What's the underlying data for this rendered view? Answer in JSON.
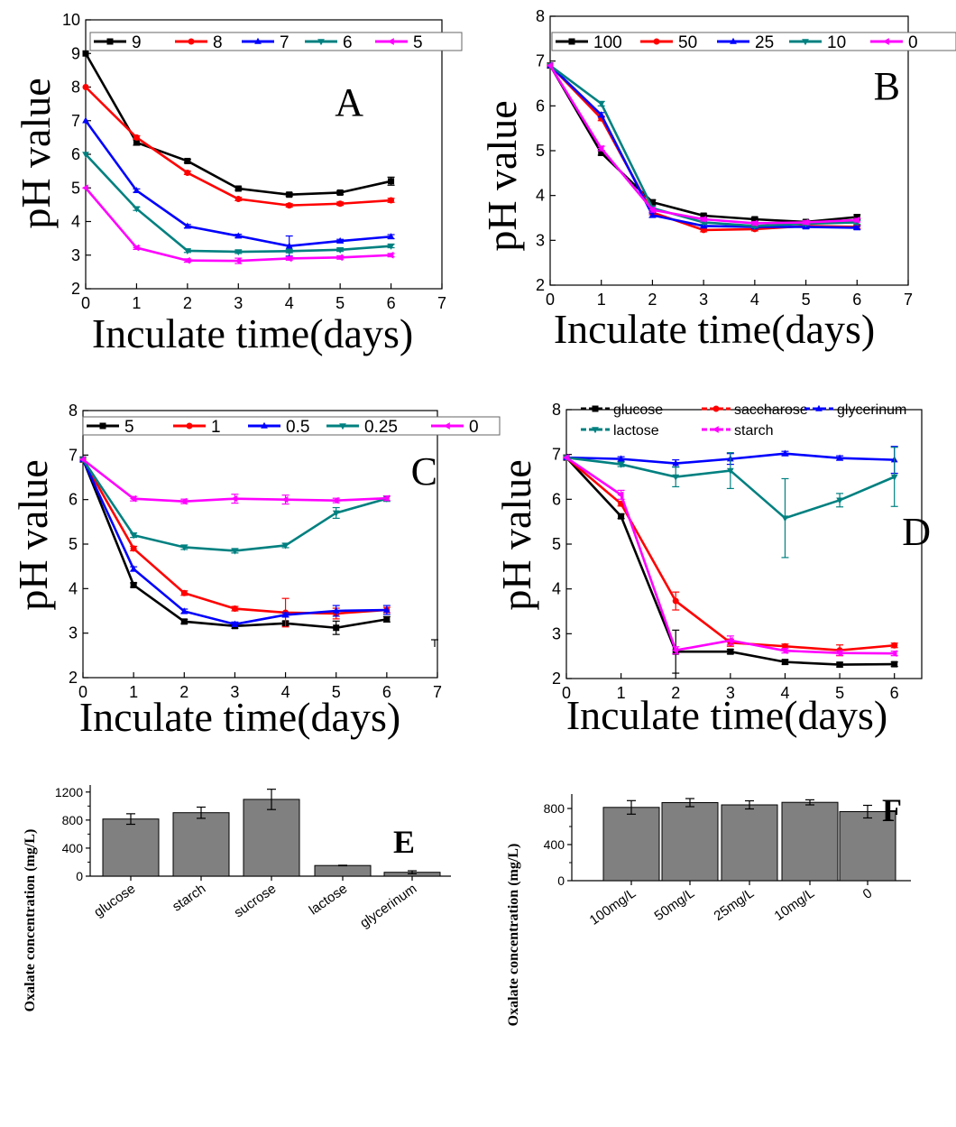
{
  "chart_data": [
    {
      "id": "A",
      "type": "line",
      "panel_label": "A",
      "xlabel": "Inculate time(days)",
      "ylabel": "pH value",
      "xlim": [
        0,
        7
      ],
      "ylim": [
        2,
        10
      ],
      "x_ticks": [
        0,
        1,
        2,
        3,
        4,
        5,
        6,
        7
      ],
      "y_ticks": [
        2,
        3,
        4,
        5,
        6,
        7,
        8,
        9,
        10
      ],
      "x": [
        0,
        1,
        2,
        3,
        4,
        5,
        6
      ],
      "legend": "top, one row",
      "series": [
        {
          "name": "9",
          "color": "#000000",
          "marker": "square",
          "values": [
            9.0,
            6.35,
            5.8,
            4.98,
            4.8,
            4.86,
            5.2
          ],
          "errors": [
            0,
            0.08,
            0.05,
            0.05,
            0.05,
            0.05,
            0.12
          ]
        },
        {
          "name": "8",
          "color": "#ff0000",
          "marker": "circle",
          "values": [
            8.0,
            6.5,
            5.45,
            4.67,
            4.48,
            4.53,
            4.63
          ],
          "errors": [
            0,
            0.05,
            0.05,
            0.05,
            0.05,
            0.05,
            0.06
          ]
        },
        {
          "name": "7",
          "color": "#0000ff",
          "marker": "triangle-up",
          "values": [
            7.0,
            4.92,
            3.86,
            3.57,
            3.27,
            3.42,
            3.55
          ],
          "errors": [
            0,
            0.05,
            0.05,
            0.05,
            0.3,
            0.05,
            0.06
          ]
        },
        {
          "name": "6",
          "color": "#008080",
          "marker": "triangle-down",
          "values": [
            6.0,
            4.38,
            3.13,
            3.1,
            3.12,
            3.16,
            3.27
          ],
          "errors": [
            0,
            0.05,
            0.05,
            0.05,
            0.05,
            0.05,
            0.05
          ]
        },
        {
          "name": "5",
          "color": "#ff00ff",
          "marker": "triangle-left",
          "values": [
            5.0,
            3.22,
            2.84,
            2.83,
            2.9,
            2.93,
            3.0
          ],
          "errors": [
            0,
            0.05,
            0.05,
            0.08,
            0.05,
            0.05,
            0.05
          ]
        }
      ]
    },
    {
      "id": "B",
      "type": "line",
      "panel_label": "B",
      "xlabel": "Inculate time(days)",
      "ylabel": "pH value",
      "xlim": [
        0,
        7
      ],
      "ylim": [
        2,
        8
      ],
      "x_ticks": [
        0,
        1,
        2,
        3,
        4,
        5,
        6,
        7
      ],
      "y_ticks": [
        2,
        3,
        4,
        5,
        6,
        7,
        8
      ],
      "x": [
        0,
        1,
        2,
        3,
        4,
        5,
        6
      ],
      "legend": "top, one row",
      "series": [
        {
          "name": "100",
          "color": "#000000",
          "marker": "square",
          "values": [
            6.9,
            4.95,
            3.85,
            3.55,
            3.47,
            3.41,
            3.52
          ],
          "errors": [
            0,
            0.05,
            0.05,
            0.04,
            0.04,
            0.04,
            0.05
          ]
        },
        {
          "name": "50",
          "color": "#ff0000",
          "marker": "circle",
          "values": [
            6.9,
            5.72,
            3.62,
            3.23,
            3.25,
            3.32,
            3.3
          ],
          "errors": [
            0,
            0.05,
            0.05,
            0.04,
            0.04,
            0.04,
            0.04
          ]
        },
        {
          "name": "25",
          "color": "#0000ff",
          "marker": "triangle-up",
          "values": [
            6.9,
            5.8,
            3.56,
            3.32,
            3.3,
            3.3,
            3.28
          ],
          "errors": [
            0,
            0.05,
            0.05,
            0.04,
            0.04,
            0.04,
            0.04
          ]
        },
        {
          "name": "10",
          "color": "#008080",
          "marker": "triangle-down",
          "values": [
            6.9,
            6.05,
            3.72,
            3.4,
            3.32,
            3.37,
            3.4
          ],
          "errors": [
            0,
            0.05,
            0.05,
            0.04,
            0.04,
            0.04,
            0.04
          ]
        },
        {
          "name": "0",
          "color": "#ff00ff",
          "marker": "triangle-left",
          "values": [
            6.9,
            5.05,
            3.68,
            3.47,
            3.38,
            3.4,
            3.45
          ],
          "errors": [
            0,
            0.05,
            0.05,
            0.04,
            0.04,
            0.04,
            0.04
          ]
        }
      ]
    },
    {
      "id": "C",
      "type": "line",
      "panel_label": "C",
      "xlabel": "Inculate time(days)",
      "ylabel": "pH value",
      "xlim": [
        0,
        7
      ],
      "ylim": [
        2,
        8
      ],
      "x_ticks": [
        0,
        1,
        2,
        3,
        4,
        5,
        6,
        7
      ],
      "y_ticks": [
        2,
        3,
        4,
        5,
        6,
        7,
        8
      ],
      "x": [
        0,
        1,
        2,
        3,
        4,
        5,
        6
      ],
      "legend": "top, one row",
      "series": [
        {
          "name": "5",
          "color": "#000000",
          "marker": "square",
          "values": [
            6.9,
            4.08,
            3.26,
            3.16,
            3.22,
            3.12,
            3.31
          ],
          "errors": [
            0,
            0.05,
            0.05,
            0.05,
            0.05,
            0.15,
            0.06
          ]
        },
        {
          "name": "1",
          "color": "#ff0000",
          "marker": "circle",
          "values": [
            6.9,
            4.9,
            3.9,
            3.55,
            3.46,
            3.44,
            3.52
          ],
          "errors": [
            0,
            0.05,
            0.05,
            0.05,
            0.32,
            0.12,
            0.06
          ]
        },
        {
          "name": "0.5",
          "color": "#0000ff",
          "marker": "triangle-up",
          "values": [
            6.9,
            4.44,
            3.49,
            3.2,
            3.41,
            3.5,
            3.52
          ],
          "errors": [
            0,
            0.05,
            0.05,
            0.05,
            0.05,
            0.12,
            0.1
          ]
        },
        {
          "name": "0.25",
          "color": "#008080",
          "marker": "triangle-down",
          "values": [
            6.9,
            5.2,
            4.93,
            4.85,
            4.97,
            5.7,
            6.02
          ],
          "errors": [
            0,
            0.05,
            0.05,
            0.05,
            0.05,
            0.12,
            0.06
          ]
        },
        {
          "name": "0",
          "color": "#ff00ff",
          "marker": "triangle-left",
          "values": [
            6.9,
            6.02,
            5.96,
            6.02,
            6.0,
            5.98,
            6.03
          ],
          "errors": [
            0,
            0.05,
            0.05,
            0.1,
            0.1,
            0.05,
            0.05
          ]
        }
      ]
    },
    {
      "id": "D",
      "type": "line",
      "panel_label": "D",
      "xlabel": "Inculate time(days)",
      "ylabel": "pH value",
      "xlim": [
        0,
        6.5
      ],
      "ylim": [
        2,
        8
      ],
      "x_ticks": [
        0,
        1,
        2,
        3,
        4,
        5,
        6
      ],
      "y_ticks": [
        2,
        3,
        4,
        5,
        6,
        7,
        8
      ],
      "x": [
        0,
        1,
        2,
        3,
        4,
        5,
        6
      ],
      "legend": "top, two rows",
      "series": [
        {
          "name": "glucose",
          "color": "#000000",
          "marker": "square",
          "values": [
            6.93,
            5.62,
            2.6,
            2.6,
            2.37,
            2.31,
            2.32
          ],
          "errors": [
            0,
            0.05,
            0.48,
            0.05,
            0.05,
            0.05,
            0.05
          ]
        },
        {
          "name": "saccharose",
          "color": "#ff0000",
          "marker": "circle",
          "values": [
            6.93,
            5.9,
            3.73,
            2.8,
            2.72,
            2.63,
            2.74
          ],
          "errors": [
            0,
            0.05,
            0.2,
            0.08,
            0.05,
            0.12,
            0.05
          ]
        },
        {
          "name": "glycerinum",
          "color": "#0000ff",
          "marker": "triangle-up",
          "values": [
            6.93,
            6.9,
            6.8,
            6.9,
            7.02,
            6.92,
            6.88
          ],
          "errors": [
            0,
            0.05,
            0.08,
            0.12,
            0.05,
            0.05,
            0.3
          ]
        },
        {
          "name": "lactose",
          "color": "#008080",
          "marker": "triangle-down",
          "values": [
            6.93,
            6.78,
            6.5,
            6.64,
            5.58,
            5.98,
            6.5
          ],
          "errors": [
            0,
            0.05,
            0.22,
            0.4,
            0.88,
            0.15,
            0.66
          ]
        },
        {
          "name": "starch",
          "color": "#ff00ff",
          "marker": "triangle-left",
          "values": [
            6.93,
            6.1,
            2.63,
            2.85,
            2.62,
            2.57,
            2.56
          ],
          "errors": [
            0,
            0.1,
            0.08,
            0.1,
            0.05,
            0.05,
            0.05
          ]
        }
      ]
    },
    {
      "id": "E",
      "type": "bar",
      "panel_label": "E",
      "xlabel": "",
      "ylabel": "Oxalate concentration (mg/L)",
      "ylim": [
        0,
        1300
      ],
      "y_ticks": [
        0,
        400,
        800,
        1200
      ],
      "categories": [
        "glucose",
        "starch",
        "sucrose",
        "lactose",
        "glycerinum"
      ],
      "values": [
        815,
        905,
        1095,
        152,
        55
      ],
      "errors": [
        75,
        80,
        145,
        4,
        22
      ],
      "bar_color": "#808080"
    },
    {
      "id": "F",
      "type": "bar",
      "panel_label": "F",
      "xlabel": "",
      "ylabel": "Oxalate concentration (mg/L)",
      "ylim": [
        0,
        960
      ],
      "y_ticks": [
        0,
        400,
        800
      ],
      "categories": [
        "100mg/L",
        "50mg/L",
        "25mg/L",
        "10mg/L",
        "0"
      ],
      "values": [
        812,
        865,
        840,
        868,
        765
      ],
      "errors": [
        75,
        45,
        45,
        28,
        70
      ],
      "bar_color": "#808080"
    }
  ]
}
